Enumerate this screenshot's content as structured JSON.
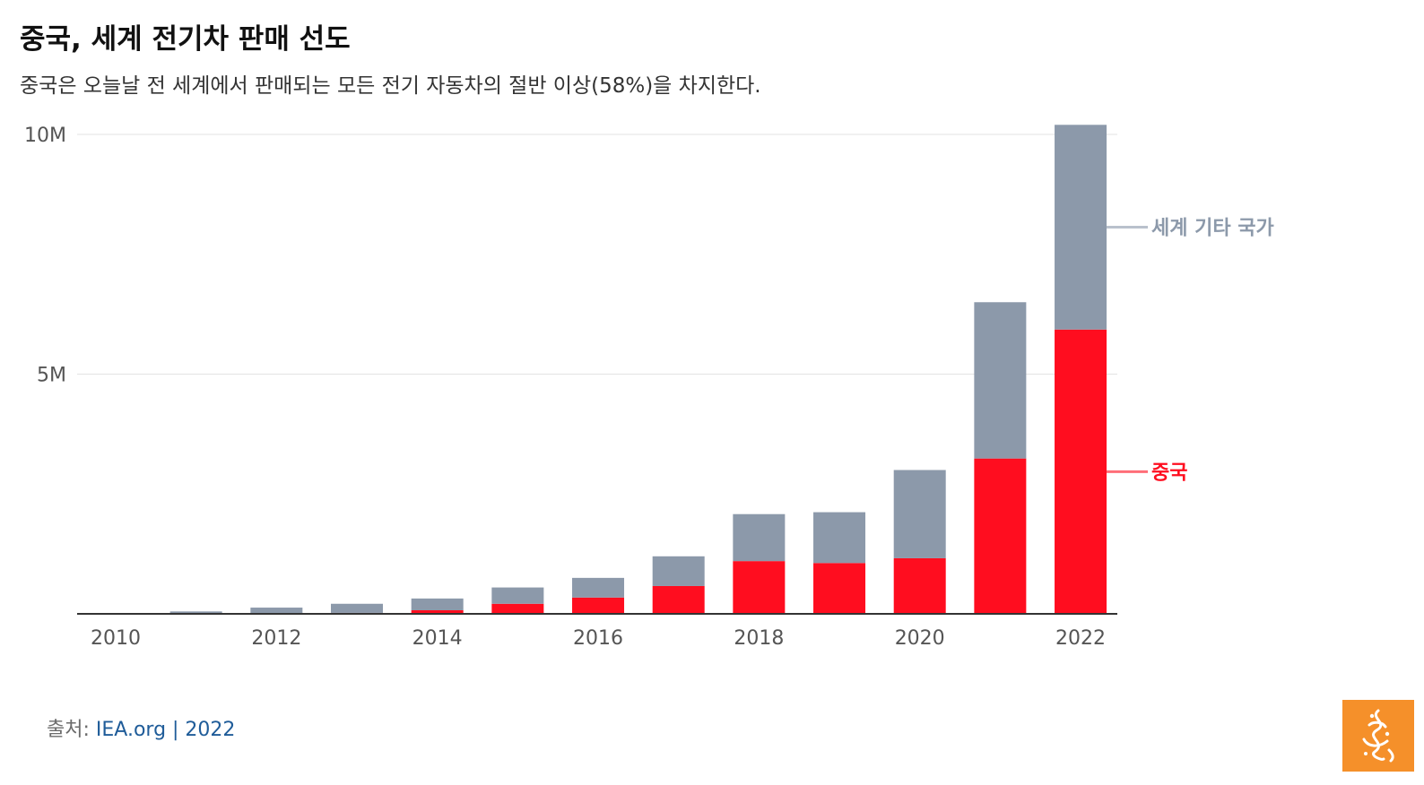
{
  "header": {
    "title": "중국, 세계 전기차 판매 선도",
    "subtitle": "중국은 오늘날 전 세계에서 판매되는 모든 전기 자동차의 절반 이상(58%)을 차지한다."
  },
  "chart_data": {
    "type": "bar",
    "stacked": true,
    "categories": [
      "2010",
      "2011",
      "2012",
      "2013",
      "2014",
      "2015",
      "2016",
      "2017",
      "2018",
      "2019",
      "2020",
      "2021",
      "2022"
    ],
    "x_tick_labels": [
      "2010",
      "2012",
      "2014",
      "2016",
      "2018",
      "2020",
      "2022"
    ],
    "y_ticks": [
      {
        "value": 10000000,
        "label": "10M"
      },
      {
        "value": 5000000,
        "label": "5M"
      }
    ],
    "ylim": [
      0,
      10500000
    ],
    "series": [
      {
        "name": "중국",
        "color": "#ff0d1f",
        "values": [
          0,
          10000,
          15000,
          20000,
          75000,
          210000,
          340000,
          580000,
          1100000,
          1060000,
          1160000,
          3240000,
          5930000
        ]
      },
      {
        "name": "세계 기타 국가",
        "color": "#8c99aa",
        "values": [
          10000,
          40000,
          115000,
          190000,
          245000,
          340000,
          410000,
          620000,
          980000,
          1060000,
          1840000,
          3260000,
          4270000
        ]
      }
    ],
    "legend": [
      {
        "name": "세계 기타 국가",
        "color": "#b9c1cc",
        "text_color": "#8c99aa"
      },
      {
        "name": "중국",
        "color": "#ff6e78",
        "text_color": "#ff0d1f"
      }
    ],
    "grid": true
  },
  "footer": {
    "source_label": "출처:",
    "source_text": "IEA.org | 2022"
  },
  "logo": {
    "name": "al-jazeera-logo",
    "color": "#f5902a"
  }
}
